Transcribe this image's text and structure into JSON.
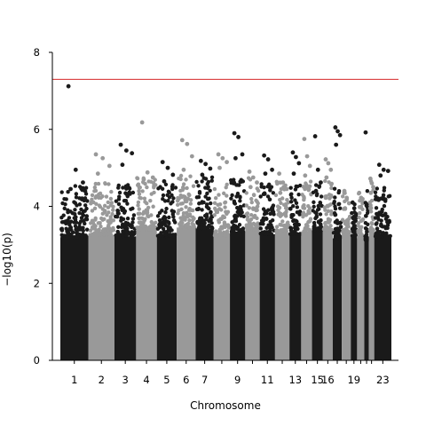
{
  "chart_data": {
    "type": "scatter",
    "title": "",
    "xlabel": "Chromosome",
    "ylabel": "−log10(p)",
    "ylim": [
      0,
      8
    ],
    "yticks": [
      0,
      2,
      4,
      6,
      8
    ],
    "grid": false,
    "significance_threshold": 7.3,
    "colors": {
      "odd_chromosomes": "#1a1a1a",
      "even_chromosomes": "#999999",
      "threshold_line": "#d62728"
    },
    "chromosomes": [
      {
        "chr": "1",
        "tick_label": "1",
        "x": 1,
        "max": 7.12,
        "top_points": [
          7.12,
          4.95,
          4.62,
          4.45
        ]
      },
      {
        "chr": "2",
        "tick_label": "2",
        "x": 2,
        "max": 5.35,
        "top_points": [
          5.35,
          5.25,
          5.05,
          4.85
        ]
      },
      {
        "chr": "3",
        "tick_label": "3",
        "x": 3,
        "max": 5.6,
        "top_points": [
          5.6,
          5.45,
          5.38,
          5.08
        ]
      },
      {
        "chr": "4",
        "tick_label": "4",
        "x": 4,
        "max": 6.18,
        "top_points": [
          6.18,
          4.88,
          4.75,
          4.7
        ]
      },
      {
        "chr": "5",
        "tick_label": "5",
        "x": 5,
        "max": 5.15,
        "top_points": [
          5.15,
          5.0,
          4.82,
          4.65
        ]
      },
      {
        "chr": "6",
        "tick_label": "6",
        "x": 6,
        "max": 5.72,
        "top_points": [
          5.72,
          5.62,
          5.3,
          4.95
        ]
      },
      {
        "chr": "7",
        "tick_label": "7",
        "x": 7,
        "max": 5.18,
        "top_points": [
          5.18,
          5.1,
          4.98,
          4.82
        ]
      },
      {
        "chr": "8",
        "tick_label": "",
        "x": 8,
        "max": 5.35,
        "top_points": [
          5.35,
          5.25,
          5.15,
          5.0
        ]
      },
      {
        "chr": "9",
        "tick_label": "9",
        "x": 9,
        "max": 5.9,
        "top_points": [
          5.9,
          5.8,
          5.35,
          5.25
        ]
      },
      {
        "chr": "10",
        "tick_label": "",
        "x": 10,
        "max": 4.9,
        "top_points": [
          4.9,
          4.75,
          4.62,
          4.5
        ]
      },
      {
        "chr": "11",
        "tick_label": "11",
        "x": 11,
        "max": 5.32,
        "top_points": [
          5.32,
          5.22,
          4.95,
          4.85
        ]
      },
      {
        "chr": "12",
        "tick_label": "",
        "x": 12,
        "max": 4.85,
        "top_points": [
          4.85,
          4.62,
          4.45,
          4.35
        ]
      },
      {
        "chr": "13",
        "tick_label": "13",
        "x": 13,
        "max": 5.4,
        "top_points": [
          5.4,
          5.28,
          5.12,
          4.85
        ]
      },
      {
        "chr": "14",
        "tick_label": "",
        "x": 14,
        "max": 5.75,
        "top_points": [
          5.75,
          5.3,
          5.05,
          4.8
        ]
      },
      {
        "chr": "15",
        "tick_label": "15",
        "x": 15,
        "max": 5.82,
        "top_points": [
          5.82,
          4.95,
          4.62,
          4.4
        ]
      },
      {
        "chr": "16",
        "tick_label": "16",
        "x": 16,
        "max": 5.22,
        "top_points": [
          5.22,
          5.12,
          4.95,
          4.75
        ]
      },
      {
        "chr": "17",
        "tick_label": "",
        "x": 17,
        "max": 6.05,
        "top_points": [
          6.05,
          5.95,
          5.85,
          5.6
        ]
      },
      {
        "chr": "18",
        "tick_label": "",
        "x": 18,
        "max": 4.4,
        "top_points": [
          4.4,
          4.22,
          4.08,
          3.95
        ]
      },
      {
        "chr": "19",
        "tick_label": "19",
        "x": 19,
        "max": 4.1,
        "top_points": [
          4.1,
          3.95,
          3.8,
          3.7
        ]
      },
      {
        "chr": "20",
        "tick_label": "",
        "x": 20,
        "max": 4.35,
        "top_points": [
          4.35,
          4.22,
          4.1,
          3.98
        ]
      },
      {
        "chr": "21",
        "tick_label": "",
        "x": 21,
        "max": 5.92,
        "top_points": [
          5.92,
          4.05,
          3.9,
          3.75
        ]
      },
      {
        "chr": "22",
        "tick_label": "",
        "x": 22,
        "max": 4.72,
        "top_points": [
          4.72,
          4.6,
          4.5,
          4.35
        ]
      },
      {
        "chr": "23",
        "tick_label": "23",
        "x": 23,
        "max": 5.08,
        "top_points": [
          5.08,
          4.95,
          4.92,
          4.8
        ]
      }
    ]
  }
}
